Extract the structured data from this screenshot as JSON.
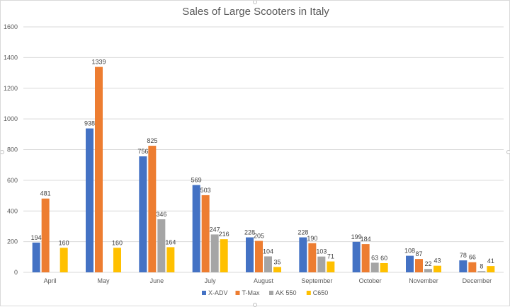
{
  "chart_data": {
    "type": "bar",
    "title": "Sales of Large Scooters in Italy",
    "xlabel": "",
    "ylabel": "",
    "ylim": [
      0,
      1600
    ],
    "yticks": [
      0,
      200,
      400,
      600,
      800,
      1000,
      1200,
      1400,
      1600
    ],
    "grid": true,
    "legend_position": "bottom",
    "categories": [
      "April",
      "May",
      "June",
      "July",
      "August",
      "September",
      "October",
      "November",
      "December"
    ],
    "series": [
      {
        "name": "X-ADV",
        "color": "#4472C4",
        "values": [
          194,
          938,
          756,
          569,
          228,
          228,
          199,
          108,
          78
        ]
      },
      {
        "name": "T-Max",
        "color": "#ED7D31",
        "values": [
          481,
          1339,
          825,
          503,
          205,
          190,
          184,
          87,
          66
        ]
      },
      {
        "name": "AK 550",
        "color": "#A5A5A5",
        "values": [
          null,
          null,
          346,
          247,
          104,
          103,
          63,
          22,
          8
        ]
      },
      {
        "name": "C650",
        "color": "#FFC000",
        "values": [
          160,
          160,
          164,
          216,
          35,
          71,
          60,
          43,
          41
        ]
      }
    ]
  }
}
